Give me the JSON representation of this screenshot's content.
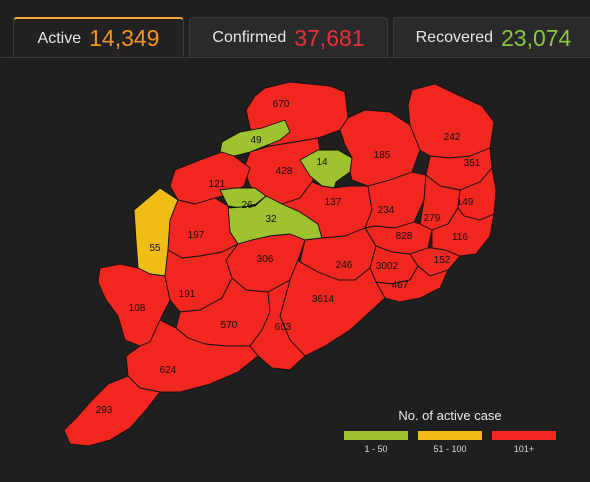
{
  "tabs": [
    {
      "label": "Active",
      "value": "14,349",
      "color": "#f7941d"
    },
    {
      "label": "Confirmed",
      "value": "37,681",
      "color": "#e8313b"
    },
    {
      "label": "Recovered",
      "value": "23,074",
      "color": "#8cc63f"
    }
  ],
  "colors": {
    "low": "#9fc32e",
    "mid": "#f0bd16",
    "high": "#f2271f"
  },
  "districts": [
    {
      "value": "670",
      "level": "high"
    },
    {
      "value": "49",
      "level": "low"
    },
    {
      "value": "428",
      "level": "high"
    },
    {
      "value": "14",
      "level": "low"
    },
    {
      "value": "185",
      "level": "high"
    },
    {
      "value": "242",
      "level": "high"
    },
    {
      "value": "351",
      "level": "high"
    },
    {
      "value": "121",
      "level": "high"
    },
    {
      "value": "26",
      "level": "low"
    },
    {
      "value": "32",
      "level": "low"
    },
    {
      "value": "137",
      "level": "high"
    },
    {
      "value": "234",
      "level": "high"
    },
    {
      "value": "279",
      "level": "high"
    },
    {
      "value": "149",
      "level": "high"
    },
    {
      "value": "55",
      "level": "mid"
    },
    {
      "value": "197",
      "level": "high"
    },
    {
      "value": "828",
      "level": "high"
    },
    {
      "value": "116",
      "level": "high"
    },
    {
      "value": "306",
      "level": "high"
    },
    {
      "value": "246",
      "level": "high"
    },
    {
      "value": "3002",
      "level": "high"
    },
    {
      "value": "152",
      "level": "high"
    },
    {
      "value": "467",
      "level": "high"
    },
    {
      "value": "108",
      "level": "high"
    },
    {
      "value": "191",
      "level": "high"
    },
    {
      "value": "3614",
      "level": "high"
    },
    {
      "value": "570",
      "level": "high"
    },
    {
      "value": "663",
      "level": "high"
    },
    {
      "value": "624",
      "level": "high"
    },
    {
      "value": "293",
      "level": "high"
    }
  ],
  "legend": {
    "title": "No. of active case",
    "items": [
      {
        "range": "1 - 50",
        "level": "low"
      },
      {
        "range": "51 - 100",
        "level": "mid"
      },
      {
        "range": "101+",
        "level": "high"
      }
    ]
  }
}
